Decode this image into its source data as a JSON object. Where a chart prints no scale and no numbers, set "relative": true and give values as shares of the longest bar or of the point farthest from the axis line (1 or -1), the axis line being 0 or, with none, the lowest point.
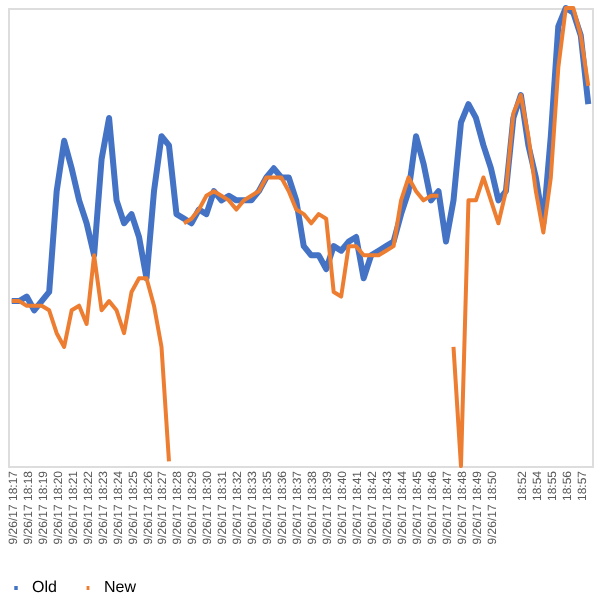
{
  "chart_data": {
    "type": "line",
    "relative": true,
    "grid": false,
    "legend": "bottom",
    "marker": "none",
    "line_style": "solid",
    "categories": [
      "9/26/17 18:17",
      null,
      "9/26/17 18:18",
      null,
      "9/26/17 18:19",
      null,
      "9/26/17 18:20",
      null,
      "9/26/17 18:21",
      null,
      "9/26/17 18:22",
      null,
      "9/26/17 18:23",
      null,
      "9/26/17 18:24",
      null,
      "9/26/17 18:25",
      null,
      "9/26/17 18:26",
      null,
      "9/26/17 18:27",
      null,
      "9/26/17 18:28",
      null,
      "9/26/17 18:29",
      null,
      "9/26/17 18:30",
      null,
      "9/26/17 18:31",
      null,
      "9/26/17 18:32",
      null,
      "9/26/17 18:33",
      null,
      "9/26/17 18:35",
      null,
      "9/26/17 18:36",
      null,
      "9/26/17 18:37",
      null,
      "9/26/17 18:38",
      null,
      "9/26/17 18:39",
      null,
      "9/26/17 18:40",
      null,
      "9/26/17 18:41",
      null,
      "9/26/17 18:42",
      null,
      "9/26/17 18:43",
      null,
      "9/26/17 18:44",
      null,
      "9/26/17 18:45",
      null,
      "9/26/17 18:46",
      null,
      "9/26/17 18:47",
      null,
      "9/26/17 18:48",
      null,
      "9/26/17 18:49",
      null,
      "9/26/17 18:50",
      null,
      null,
      null,
      "18:52",
      null,
      "18:54",
      null,
      "18:55",
      null,
      "18:56",
      null,
      "18:57",
      null
    ],
    "series": [
      {
        "name": "Old",
        "color": "#4472c4",
        "values": [
          0.36,
          0.36,
          0.37,
          0.34,
          0.36,
          0.38,
          0.6,
          0.71,
          0.65,
          0.58,
          0.53,
          0.46,
          0.67,
          0.76,
          0.58,
          0.53,
          0.55,
          0.5,
          0.41,
          0.6,
          0.72,
          0.7,
          0.55,
          0.54,
          0.53,
          0.56,
          0.55,
          0.6,
          0.58,
          0.59,
          0.58,
          0.58,
          0.58,
          0.6,
          0.63,
          0.65,
          0.63,
          0.63,
          0.58,
          0.48,
          0.46,
          0.46,
          0.43,
          0.48,
          0.47,
          0.49,
          0.5,
          0.41,
          0.46,
          0.47,
          0.48,
          0.49,
          0.55,
          0.6,
          0.72,
          0.66,
          0.58,
          0.6,
          0.49,
          0.58,
          0.75,
          0.79,
          0.76,
          0.7,
          0.65,
          0.58,
          0.6,
          0.76,
          0.81,
          0.7,
          0.63,
          0.53,
          0.72,
          0.96,
          1,
          0.99,
          0.94,
          0.79
        ]
      },
      {
        "name": "New",
        "color": "#ed7d31",
        "values": [
          0.36,
          0.36,
          0.35,
          0.35,
          0.35,
          0.34,
          0.29,
          0.26,
          0.34,
          0.35,
          0.31,
          0.46,
          0.34,
          0.36,
          0.34,
          0.29,
          0.38,
          0.41,
          0.41,
          0.35,
          0.26,
          0.01,
          null,
          0.53,
          0.54,
          0.56,
          0.59,
          0.6,
          0.59,
          0.58,
          0.56,
          0.58,
          0.59,
          0.6,
          0.63,
          0.63,
          0.63,
          0.6,
          0.56,
          0.55,
          0.53,
          0.55,
          0.54,
          0.38,
          0.37,
          0.48,
          0.48,
          0.46,
          0.46,
          0.46,
          0.47,
          0.48,
          0.58,
          0.63,
          0.6,
          0.58,
          0.59,
          0.59,
          null,
          0.26,
          0,
          0.58,
          0.58,
          0.63,
          0.58,
          0.53,
          0.6,
          0.77,
          0.81,
          0.72,
          0.6,
          0.51,
          0.63,
          0.87,
          1,
          1,
          0.94,
          0.83
        ]
      }
    ]
  }
}
